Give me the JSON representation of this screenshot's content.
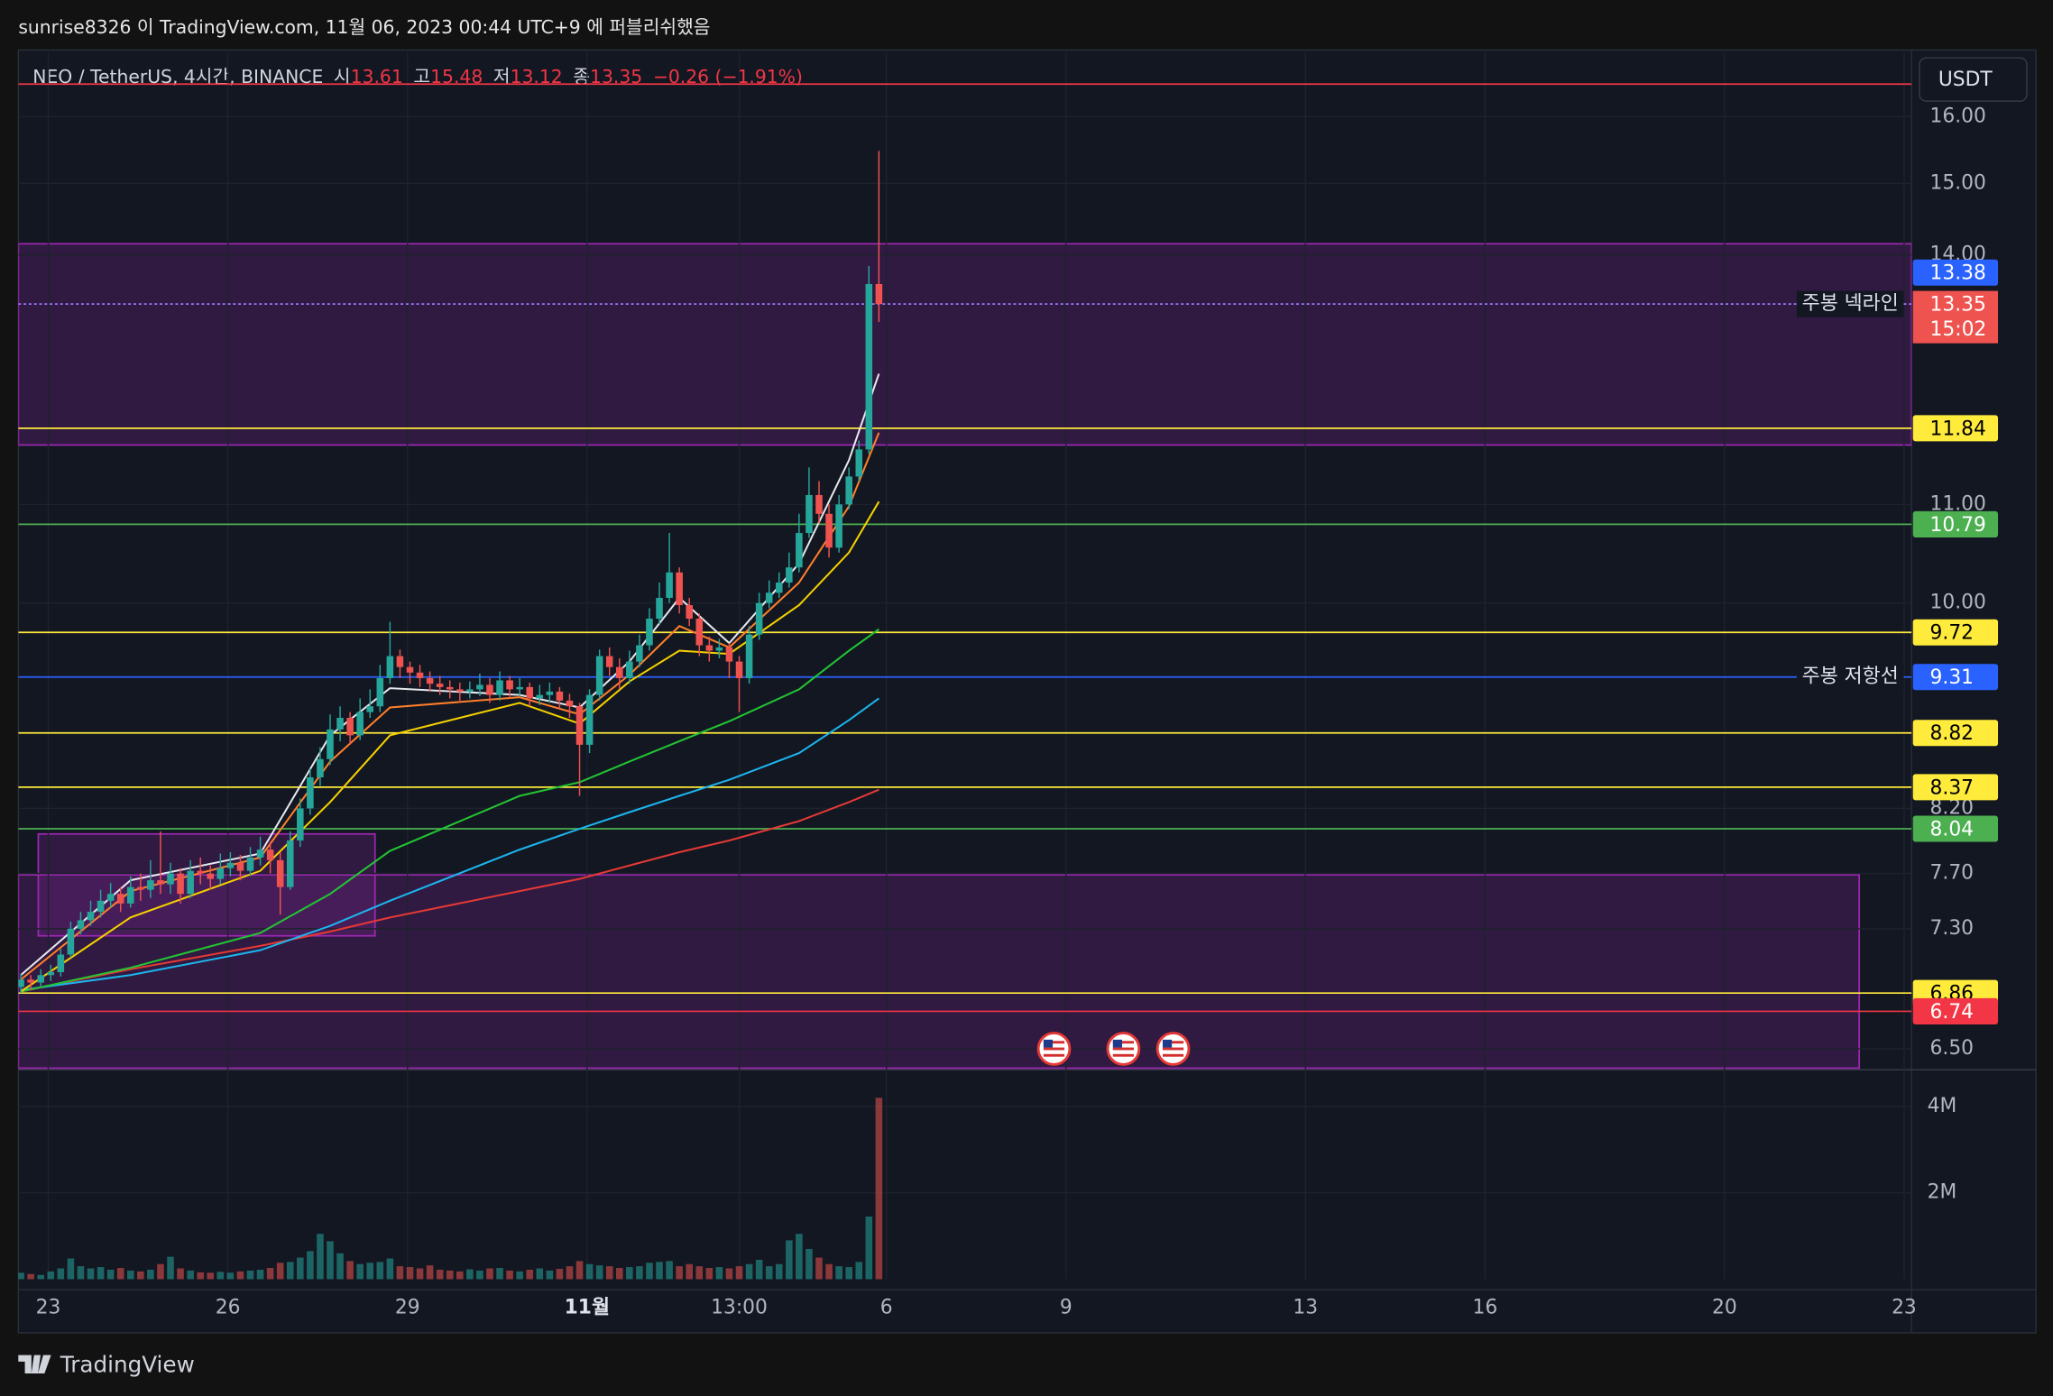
{
  "header": {
    "text": "sunrise8326 이 TradingView.com, 11월 06, 2023 00:44 UTC+9 에 퍼블리쉬했음"
  },
  "footer": {
    "brand": "TradingView"
  },
  "chart_data": {
    "type": "candlestick",
    "title": "NEO / TetherUS, 4시간, BINANCE",
    "ohlc_labels": [
      "시",
      "고",
      "저",
      "종"
    ],
    "change_label": "−0.26 (−1.91%)",
    "currency": "USDT",
    "countdown": "15:02",
    "up_color": "#26a69a",
    "down_color": "#ef5350",
    "log_scale": true,
    "grid": true,
    "xlim": [
      "2023-10-22T12:00",
      "2023-11-23T03:00"
    ],
    "xticks": [
      {
        "value": "2023-10-23T00:00",
        "label": "23"
      },
      {
        "value": "2023-10-26T00:00",
        "label": "26"
      },
      {
        "value": "2023-10-29T00:00",
        "label": "29"
      },
      {
        "value": "2023-11-01T00:00",
        "label": "11월"
      },
      {
        "value": "2023-11-03T13:00",
        "label": "13:00"
      },
      {
        "value": "2023-11-06T00:00",
        "label": "6"
      },
      {
        "value": "2023-11-09T00:00",
        "label": "9"
      },
      {
        "value": "2023-11-13T00:00",
        "label": "13"
      },
      {
        "value": "2023-11-16T00:00",
        "label": "16"
      },
      {
        "value": "2023-11-20T00:00",
        "label": "20"
      },
      {
        "value": "2023-11-23T00:00",
        "label": "23"
      }
    ],
    "ylim": [
      6.37,
      17.02
    ],
    "yticks": [
      {
        "value": 16,
        "label": "16.00"
      },
      {
        "value": 15,
        "label": "15.00"
      },
      {
        "value": 14,
        "label": "14.00"
      },
      {
        "value": 11,
        "label": "11.00"
      },
      {
        "value": 10,
        "label": "10.00"
      },
      {
        "value": 8.2,
        "label": "8.20"
      },
      {
        "value": 7.7,
        "label": "7.70"
      },
      {
        "value": 7.3,
        "label": "7.30"
      },
      {
        "value": 6.5,
        "label": "6.50"
      }
    ],
    "volume_ylim": [
      0,
      4850000
    ],
    "volume_yticks": [
      {
        "value": 4000000,
        "label": "4M"
      },
      {
        "value": 2000000,
        "label": "2M"
      }
    ],
    "x": [
      "2023-10-22T13:00",
      "2023-10-22T17:00",
      "2023-10-22T21:00",
      "2023-10-23T01:00",
      "2023-10-23T05:00",
      "2023-10-23T09:00",
      "2023-10-23T13:00",
      "2023-10-23T17:00",
      "2023-10-23T21:00",
      "2023-10-24T01:00",
      "2023-10-24T05:00",
      "2023-10-24T09:00",
      "2023-10-24T13:00",
      "2023-10-24T17:00",
      "2023-10-24T21:00",
      "2023-10-25T01:00",
      "2023-10-25T05:00",
      "2023-10-25T09:00",
      "2023-10-25T13:00",
      "2023-10-25T17:00",
      "2023-10-25T21:00",
      "2023-10-26T01:00",
      "2023-10-26T05:00",
      "2023-10-26T09:00",
      "2023-10-26T13:00",
      "2023-10-26T17:00",
      "2023-10-26T21:00",
      "2023-10-27T01:00",
      "2023-10-27T05:00",
      "2023-10-27T09:00",
      "2023-10-27T13:00",
      "2023-10-27T17:00",
      "2023-10-27T21:00",
      "2023-10-28T01:00",
      "2023-10-28T05:00",
      "2023-10-28T09:00",
      "2023-10-28T13:00",
      "2023-10-28T17:00",
      "2023-10-28T21:00",
      "2023-10-29T01:00",
      "2023-10-29T05:00",
      "2023-10-29T09:00",
      "2023-10-29T13:00",
      "2023-10-29T17:00",
      "2023-10-29T21:00",
      "2023-10-30T01:00",
      "2023-10-30T05:00",
      "2023-10-30T09:00",
      "2023-10-30T13:00",
      "2023-10-30T17:00",
      "2023-10-30T21:00",
      "2023-10-31T01:00",
      "2023-10-31T05:00",
      "2023-10-31T09:00",
      "2023-10-31T13:00",
      "2023-10-31T17:00",
      "2023-10-31T21:00",
      "2023-11-01T01:00",
      "2023-11-01T05:00",
      "2023-11-01T09:00",
      "2023-11-01T13:00",
      "2023-11-01T17:00",
      "2023-11-01T21:00",
      "2023-11-02T01:00",
      "2023-11-02T05:00",
      "2023-11-02T09:00",
      "2023-11-02T13:00",
      "2023-11-02T17:00",
      "2023-11-02T21:00",
      "2023-11-03T01:00",
      "2023-11-03T05:00",
      "2023-11-03T09:00",
      "2023-11-03T13:00",
      "2023-11-03T17:00",
      "2023-11-03T21:00",
      "2023-11-04T01:00",
      "2023-11-04T05:00",
      "2023-11-04T09:00",
      "2023-11-04T13:00",
      "2023-11-04T17:00",
      "2023-11-04T21:00",
      "2023-11-05T01:00",
      "2023-11-05T05:00",
      "2023-11-05T09:00",
      "2023-11-05T13:00",
      "2023-11-05T17:00",
      "2023-11-05T21:00"
    ],
    "open": [
      6.9,
      6.95,
      6.93,
      6.98,
      7.0,
      7.12,
      7.3,
      7.36,
      7.42,
      7.5,
      7.55,
      7.48,
      7.6,
      7.58,
      7.65,
      7.62,
      7.7,
      7.55,
      7.72,
      7.7,
      7.66,
      7.74,
      7.78,
      7.72,
      7.82,
      7.88,
      7.8,
      7.6,
      7.95,
      8.2,
      8.45,
      8.6,
      8.85,
      8.95,
      8.8,
      9.0,
      9.05,
      9.3,
      9.5,
      9.4,
      9.35,
      9.3,
      9.25,
      9.22,
      9.2,
      9.18,
      9.2,
      9.24,
      9.15,
      9.28,
      9.2,
      9.22,
      9.12,
      9.15,
      9.18,
      9.1,
      9.05,
      8.72,
      9.15,
      9.5,
      9.4,
      9.3,
      9.45,
      9.6,
      9.85,
      10.05,
      10.3,
      9.98,
      9.85,
      9.6,
      9.55,
      9.58,
      9.45,
      9.3,
      9.7,
      10.0,
      10.1,
      10.2,
      10.35,
      10.7,
      11.1,
      10.9,
      10.55,
      11.0,
      11.3,
      11.6,
      13.61
    ],
    "high": [
      6.99,
      6.98,
      7.02,
      7.05,
      7.16,
      7.35,
      7.42,
      7.5,
      7.58,
      7.63,
      7.6,
      7.68,
      7.7,
      7.8,
      8.02,
      7.78,
      7.74,
      7.8,
      7.82,
      7.76,
      7.85,
      7.86,
      7.84,
      7.9,
      7.98,
      7.94,
      7.86,
      8.02,
      8.28,
      8.52,
      8.7,
      8.98,
      9.05,
      9.0,
      9.12,
      9.2,
      9.42,
      9.82,
      9.56,
      9.45,
      9.42,
      9.36,
      9.32,
      9.28,
      9.26,
      9.27,
      9.34,
      9.3,
      9.36,
      9.32,
      9.3,
      9.26,
      9.24,
      9.26,
      9.22,
      9.16,
      9.08,
      9.2,
      9.56,
      9.58,
      9.48,
      9.55,
      9.7,
      9.95,
      10.2,
      10.7,
      10.35,
      10.05,
      9.9,
      9.68,
      9.66,
      9.62,
      9.5,
      9.78,
      10.1,
      10.22,
      10.3,
      10.5,
      10.9,
      11.4,
      11.25,
      11.0,
      11.1,
      11.4,
      11.7,
      13.85,
      15.48
    ],
    "low": [
      6.86,
      6.88,
      6.9,
      6.94,
      6.97,
      7.1,
      7.26,
      7.32,
      7.38,
      7.45,
      7.42,
      7.45,
      7.5,
      7.52,
      7.55,
      7.55,
      7.48,
      7.52,
      7.62,
      7.58,
      7.62,
      7.68,
      7.65,
      7.68,
      7.76,
      7.7,
      7.4,
      7.58,
      7.9,
      8.15,
      8.38,
      8.55,
      8.75,
      8.72,
      8.76,
      8.95,
      9.0,
      9.25,
      9.3,
      9.25,
      9.22,
      9.18,
      9.15,
      9.12,
      9.1,
      9.12,
      9.14,
      9.08,
      9.1,
      9.12,
      9.14,
      9.05,
      9.06,
      9.08,
      9.02,
      8.95,
      8.3,
      8.65,
      9.1,
      9.32,
      9.2,
      9.25,
      9.4,
      9.55,
      9.8,
      10.0,
      9.9,
      9.78,
      9.5,
      9.45,
      9.48,
      9.3,
      9.0,
      9.25,
      9.65,
      9.95,
      10.05,
      10.15,
      10.3,
      10.65,
      10.8,
      10.45,
      10.5,
      10.95,
      11.25,
      11.55,
      13.12
    ],
    "close": [
      6.95,
      6.93,
      6.98,
      7.0,
      7.12,
      7.3,
      7.36,
      7.42,
      7.5,
      7.55,
      7.48,
      7.6,
      7.58,
      7.65,
      7.62,
      7.7,
      7.55,
      7.72,
      7.7,
      7.66,
      7.74,
      7.78,
      7.72,
      7.82,
      7.88,
      7.8,
      7.6,
      7.95,
      8.2,
      8.45,
      8.6,
      8.85,
      8.95,
      8.8,
      9.0,
      9.05,
      9.3,
      9.5,
      9.4,
      9.35,
      9.3,
      9.25,
      9.22,
      9.2,
      9.18,
      9.2,
      9.24,
      9.15,
      9.28,
      9.2,
      9.22,
      9.12,
      9.15,
      9.18,
      9.1,
      9.05,
      8.72,
      9.15,
      9.5,
      9.4,
      9.3,
      9.45,
      9.6,
      9.85,
      10.05,
      10.3,
      9.98,
      9.85,
      9.6,
      9.55,
      9.58,
      9.45,
      9.3,
      9.7,
      10.0,
      10.1,
      10.2,
      10.35,
      10.7,
      11.1,
      10.9,
      10.55,
      11.0,
      11.3,
      11.6,
      13.61,
      13.35
    ],
    "volume": [
      150000,
      120000,
      100000,
      180000,
      250000,
      480000,
      300000,
      250000,
      280000,
      220000,
      260000,
      200000,
      180000,
      220000,
      350000,
      520000,
      250000,
      200000,
      160000,
      150000,
      170000,
      150000,
      180000,
      200000,
      220000,
      260000,
      380000,
      400000,
      500000,
      650000,
      1050000,
      880000,
      600000,
      420000,
      350000,
      380000,
      400000,
      480000,
      300000,
      280000,
      250000,
      320000,
      220000,
      200000,
      180000,
      230000,
      200000,
      250000,
      260000,
      200000,
      180000,
      220000,
      250000,
      200000,
      240000,
      300000,
      420000,
      350000,
      320000,
      300000,
      260000,
      280000,
      300000,
      380000,
      400000,
      420000,
      300000,
      350000,
      300000,
      260000,
      280000,
      250000,
      300000,
      350000,
      450000,
      300000,
      350000,
      900000,
      1050000,
      700000,
      500000,
      350000,
      300000,
      280000,
      400000,
      1450000,
      4200000
    ],
    "indicator_x": [
      "2023-10-22T13:00",
      "2023-10-24T09:00",
      "2023-10-26T13:00",
      "2023-10-27T17:00",
      "2023-10-28T17:00",
      "2023-10-30T21:00",
      "2023-10-31T21:00",
      "2023-11-01T17:00",
      "2023-11-02T13:00",
      "2023-11-03T09:00",
      "2023-11-04T13:00",
      "2023-11-05T09:00",
      "2023-11-05T21:00"
    ],
    "indicators": [
      {
        "color": "#e53935",
        "values": [
          6.87,
          7.02,
          7.18,
          7.28,
          7.38,
          7.57,
          7.66,
          7.76,
          7.86,
          7.95,
          8.1,
          8.25,
          8.35
        ]
      },
      {
        "color": "#1cb5ee",
        "values": [
          6.88,
          6.98,
          7.15,
          7.32,
          7.5,
          7.88,
          8.04,
          8.17,
          8.3,
          8.43,
          8.65,
          8.93,
          9.12
        ]
      },
      {
        "color": "#22c532",
        "values": [
          6.87,
          7.03,
          7.27,
          7.55,
          7.87,
          8.3,
          8.41,
          8.58,
          8.75,
          8.92,
          9.2,
          9.55,
          9.75
        ]
      },
      {
        "color": "#f5d000",
        "values": [
          6.87,
          7.38,
          7.72,
          8.25,
          8.8,
          9.08,
          8.9,
          9.27,
          9.55,
          9.52,
          9.98,
          10.5,
          11.03
        ]
      },
      {
        "color": "#ff7f2a",
        "values": [
          6.95,
          7.57,
          7.82,
          8.58,
          9.04,
          9.13,
          8.98,
          9.33,
          9.78,
          9.58,
          10.2,
          10.98,
          11.79
        ]
      },
      {
        "color": "#e6e8ee",
        "values": [
          6.98,
          7.65,
          7.85,
          8.8,
          9.21,
          9.15,
          9.04,
          9.45,
          10.05,
          9.62,
          10.39,
          11.48,
          12.48
        ]
      }
    ],
    "zones": [
      {
        "top": 14.15,
        "bottom": 11.65,
        "x": [
          "2023-10-22T12:00",
          "2023-11-23T03:00"
        ],
        "color": "#9c27b0"
      },
      {
        "top": 7.69,
        "bottom": 6.38,
        "x": [
          "2023-10-22T12:00",
          "2023-11-22T06:00"
        ],
        "color": "#9c27b0"
      },
      {
        "top": 8.0,
        "bottom": 7.25,
        "x": [
          "2023-10-22T20:00",
          "2023-10-28T11:00"
        ],
        "color": "#9c27b0"
      }
    ],
    "levels": [
      {
        "value": 16.51,
        "color": "#f23645"
      },
      {
        "value": 13.35,
        "color": "#9b7bff",
        "dashed": true,
        "text": "주봉 넥라인"
      },
      {
        "value": 13.38,
        "color": "#2962ff",
        "line": false,
        "labeled": true
      },
      {
        "value": 11.84,
        "color": "#ffeb3b",
        "labeled": true
      },
      {
        "value": 10.79,
        "color": "#4caf50",
        "labeled": true
      },
      {
        "value": 9.72,
        "color": "#ffeb3b",
        "labeled": true
      },
      {
        "value": 9.31,
        "color": "#2962ff",
        "labeled": true,
        "text": "주봉 저항선"
      },
      {
        "value": 8.82,
        "color": "#ffeb3b",
        "labeled": true
      },
      {
        "value": 8.37,
        "color": "#ffeb3b",
        "labeled": true
      },
      {
        "value": 8.04,
        "color": "#4caf50",
        "labeled": true
      },
      {
        "value": 6.86,
        "color": "#ffeb3b",
        "labeled": true
      },
      {
        "value": 6.74,
        "color": "#f23645",
        "labeled": true
      }
    ]
  }
}
